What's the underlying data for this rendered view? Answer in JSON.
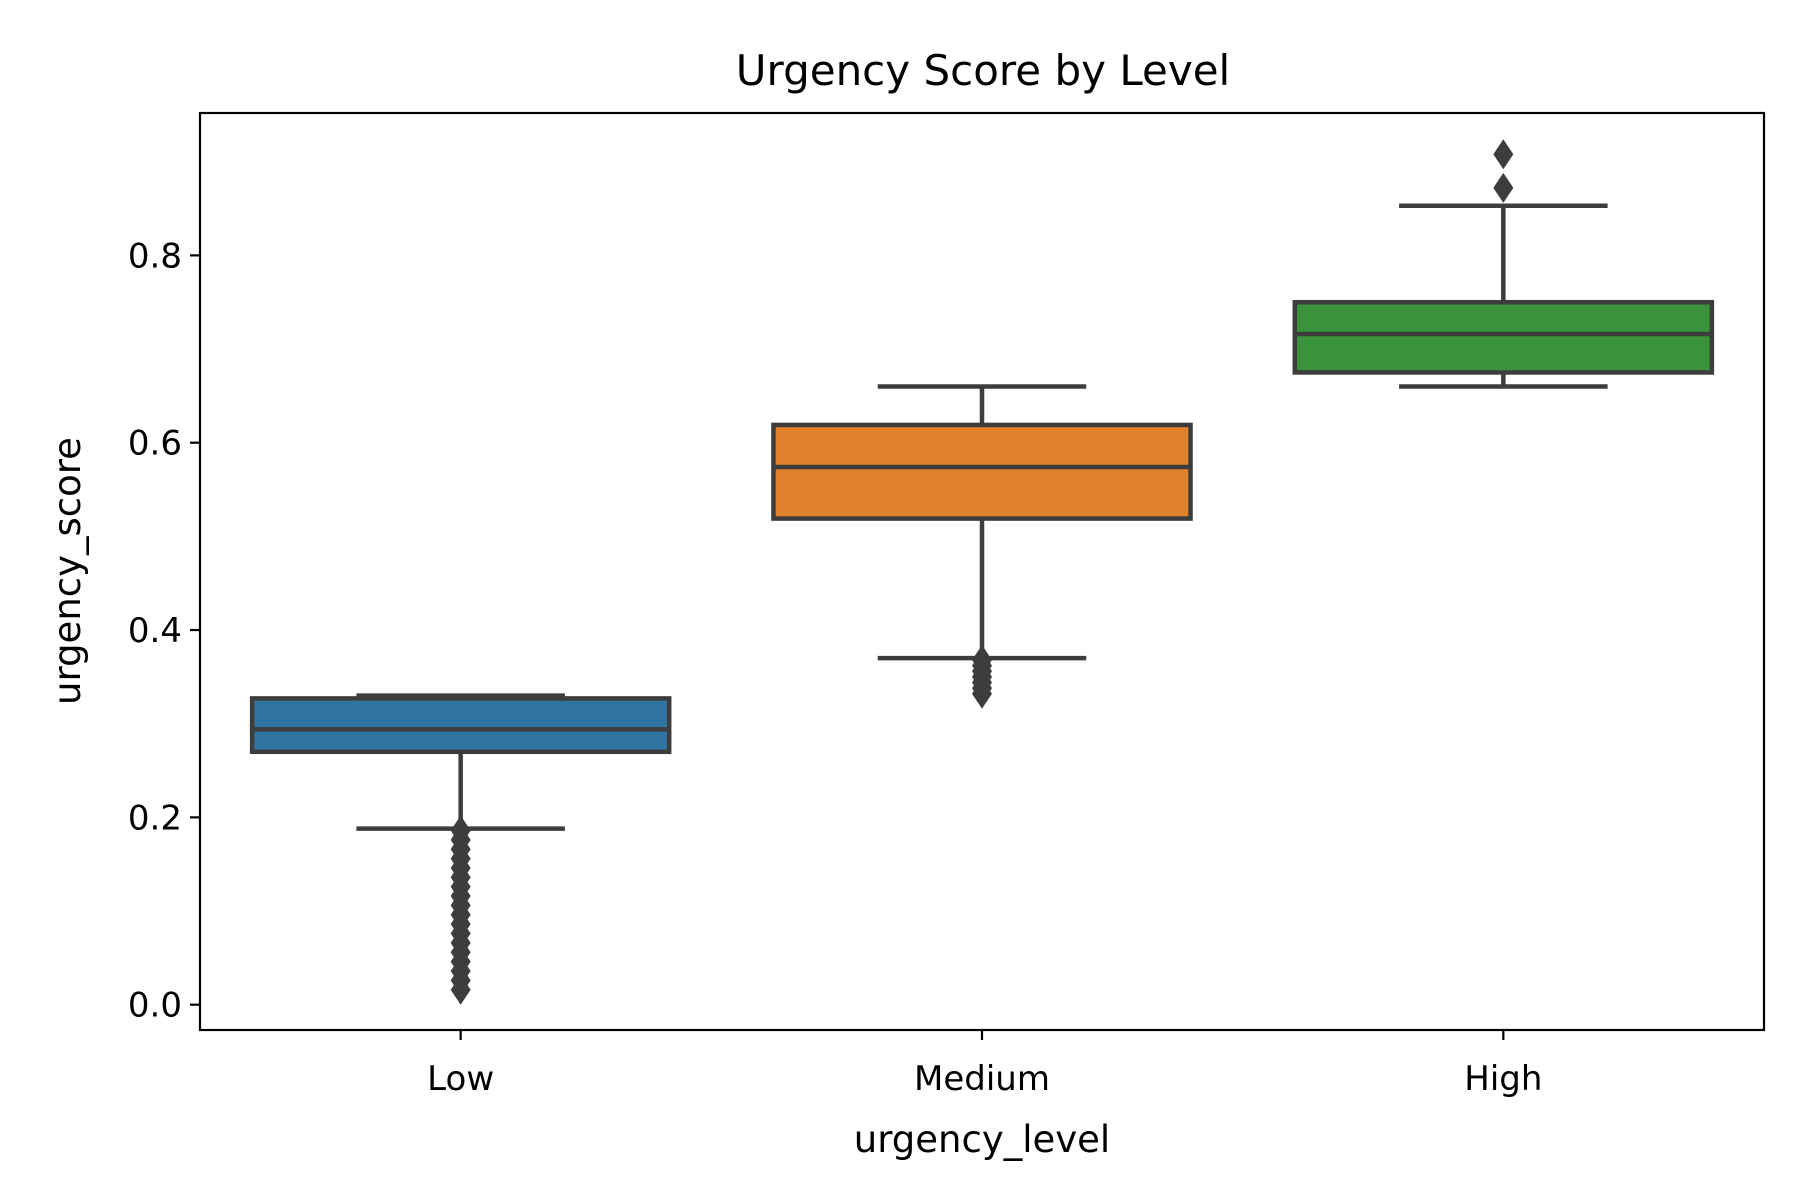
{
  "chart_data": {
    "type": "box",
    "title": "Urgency Score by Level",
    "xlabel": "urgency_level",
    "ylabel": "urgency_score",
    "categories": [
      "Low",
      "Medium",
      "High"
    ],
    "ylim": [
      -0.027,
      0.952
    ],
    "yticks": [
      0.0,
      0.2,
      0.4,
      0.6,
      0.8
    ],
    "ytick_labels": [
      "0.0",
      "0.2",
      "0.4",
      "0.6",
      "0.8"
    ],
    "grid": false,
    "legend": "none",
    "boxes": [
      {
        "category": "Low",
        "color": "#3274a1",
        "whisker_low": 0.188,
        "q1": 0.27,
        "median": 0.294,
        "q3": 0.327,
        "whisker_high": 0.33,
        "outliers": [
          0.186,
          0.176,
          0.166,
          0.156,
          0.146,
          0.136,
          0.126,
          0.116,
          0.106,
          0.096,
          0.086,
          0.076,
          0.066,
          0.056,
          0.046,
          0.036,
          0.026,
          0.016
        ]
      },
      {
        "category": "Medium",
        "color": "#e1812c",
        "whisker_low": 0.37,
        "q1": 0.519,
        "median": 0.574,
        "q3": 0.619,
        "whisker_high": 0.66,
        "outliers": [
          0.368,
          0.362,
          0.356,
          0.35,
          0.344,
          0.338,
          0.332
        ]
      },
      {
        "category": "High",
        "color": "#3a923a",
        "whisker_low": 0.66,
        "q1": 0.675,
        "median": 0.716,
        "q3": 0.75,
        "whisker_high": 0.853,
        "outliers": [
          0.872,
          0.908
        ]
      }
    ]
  }
}
